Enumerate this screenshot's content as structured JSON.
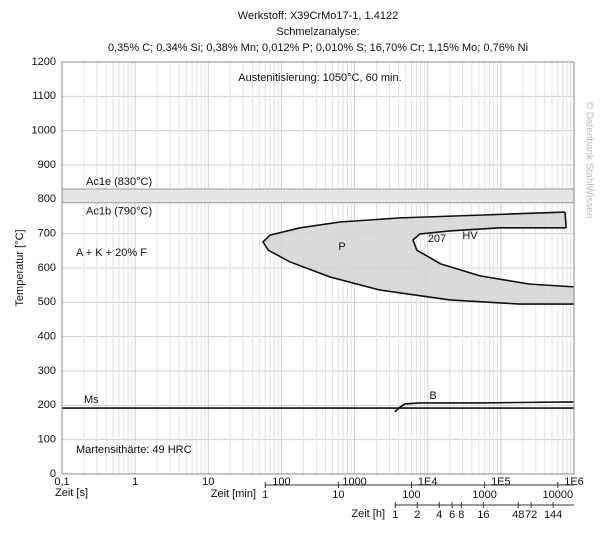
{
  "chart_data": {
    "type": "line",
    "title_lines": [
      "Werkstoff: X39CrMo17-1, 1.4122",
      "Schmelzanalyse:",
      "0,35% C; 0,34% Si; 0,38% Mn; 0,012% P; 0,010% S; 16,70% Cr; 1,15% Mo; 0,76% Ni"
    ],
    "ylabel": "Temperatur [°C]",
    "xlabel": "Zeit [s]",
    "xlabel_min": "Zeit [min]",
    "xlabel_h": "Zeit [h]",
    "log_x": true,
    "grid": true,
    "minor_grid": true,
    "xlim": [
      0.1,
      1000000
    ],
    "ylim": [
      0,
      1200
    ],
    "yticks": [
      0,
      100,
      200,
      300,
      400,
      500,
      600,
      700,
      800,
      900,
      1000,
      1100,
      1200
    ],
    "xticks": [
      {
        "value": 0.1,
        "label": "0,1"
      },
      1,
      10,
      100,
      1000,
      {
        "value": 10000,
        "label": "1E4"
      },
      {
        "value": 100000,
        "label": "1E5"
      },
      {
        "value": 1000000,
        "label": "1E6"
      }
    ],
    "xticks_min": [
      {
        "value": 60,
        "label": "1"
      },
      {
        "value": 600,
        "label": "10"
      },
      {
        "value": 6000,
        "label": "100"
      },
      {
        "value": 60000,
        "label": "1000"
      },
      {
        "value": 600000,
        "label": "10000"
      }
    ],
    "xticks_h": [
      {
        "value": 3600,
        "label": "1"
      },
      {
        "value": 7200,
        "label": "2"
      },
      {
        "value": 14400,
        "label": "4"
      },
      {
        "value": 21600,
        "label": "6"
      },
      {
        "value": 28800,
        "label": "8"
      },
      {
        "value": 57600,
        "label": "16"
      },
      {
        "value": 172800,
        "label": "48"
      },
      {
        "value": 259200,
        "label": "72"
      },
      {
        "value": 518400,
        "label": "144"
      }
    ],
    "ac1": {
      "upper": 830,
      "upper_label": "Ac1e (830°C)",
      "lower": 790,
      "lower_label": "Ac1b (790°C)",
      "color": "#e6e6e6"
    },
    "fill_color": "#d4d4d4",
    "series": [
      {
        "color": "#111111",
        "x": [
          754000,
          52000,
          4200,
          630,
          180,
          70,
          56,
          66,
          130,
          460,
          2200,
          20000,
          180000,
          1000000
        ],
        "values": [
          763,
          754,
          746,
          734,
          717,
          696,
          676,
          652,
          618,
          574,
          536,
          507,
          495,
          495
        ]
      },
      {
        "color": "#111111",
        "x": [
          780000,
          98000,
          20000,
          7800,
          6300,
          7100,
          15000,
          52000,
          250000,
          1000000
        ],
        "values": [
          717,
          717,
          708,
          699,
          682,
          652,
          612,
          577,
          553,
          545
        ]
      },
      {
        "color": "#111111",
        "x": [
          3550,
          4200,
          4900,
          7800,
          52000,
          1000000
        ],
        "values": [
          181,
          195,
          204,
          207,
          207,
          210
        ]
      },
      {
        "color": "#111111",
        "x": [
          0.1,
          1000000
        ],
        "values": [
          192,
          192
        ]
      }
    ],
    "annotations": [
      "Austenitisierung: 1050°C, 60 min.",
      "A + K + 20% F",
      "P",
      "207",
      "HV",
      "B",
      "Ms",
      "Martensithärte: 49 HRC"
    ],
    "watermark": "© Datenbank StahlWissen"
  }
}
